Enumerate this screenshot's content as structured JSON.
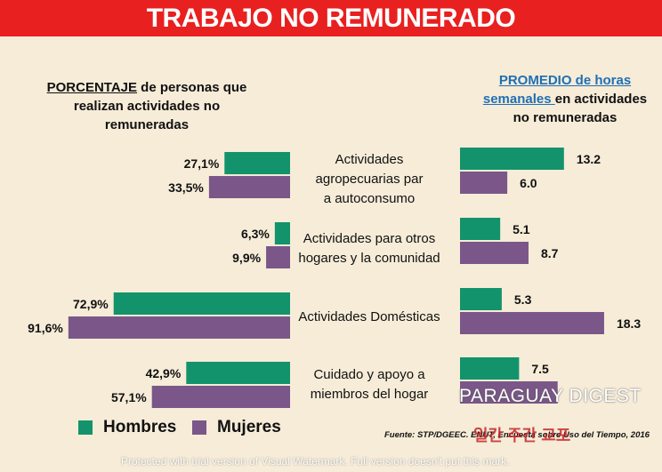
{
  "title": "TRABAJO NO REMUNERADO",
  "left_header": {
    "underlined": "PORCENTAJE",
    "rest": " de personas que realizan actividades no remuneradas"
  },
  "right_header": {
    "underlined": "PROMEDIO de horas semanales ",
    "rest": "en actividades no remuneradas"
  },
  "legend": [
    {
      "label": "Hombres",
      "color": "#13936b"
    },
    {
      "label": "Mujeres",
      "color": "#7a5788"
    }
  ],
  "source": "Fuente: STP/DGEEC. ENUT, Encuesta sobre Uso del Tiempo, 2016",
  "watermarks": [
    "PARAGUAY DIGEST",
    "일간 주간 교포",
    "Protected with trial version of Visual Watermark. Full version doesn't put this mark."
  ],
  "colors": {
    "hombres": "#13936b",
    "mujeres": "#7a5788",
    "banner": "#e8201f",
    "background": "#f6ecd8"
  },
  "chart_data": [
    {
      "type": "bar",
      "orientation": "horizontal",
      "direction": "right-to-left",
      "categories": [
        "Actividades agropecuarias para autoconsumo",
        "Actividades para otros hogares y la comunidad",
        "Actividades Domésticas",
        "Cuidado  y apoyo a miembros del hogar"
      ],
      "series": [
        {
          "name": "Hombres",
          "values": [
            27.1,
            6.3,
            72.9,
            42.9
          ],
          "labels": [
            "27,1%",
            "6,3%",
            "72,9%",
            "42,9%"
          ]
        },
        {
          "name": "Mujeres",
          "values": [
            33.5,
            9.9,
            91.6,
            57.1
          ],
          "labels": [
            "33,5%",
            "9,9%",
            "91,6%",
            "57,1%"
          ]
        }
      ],
      "xlim": [
        0,
        100
      ]
    },
    {
      "type": "bar",
      "orientation": "horizontal",
      "categories": [
        "Actividades agropecuarias para autoconsumo",
        "Actividades para otros hogares y la comunidad",
        "Actividades Domésticas",
        "Cuidado  y apoyo a miembros del hogar"
      ],
      "series": [
        {
          "name": "Hombres",
          "values": [
            13.2,
            5.1,
            5.3,
            7.5
          ],
          "labels": [
            "13.2",
            "5.1",
            "5.3",
            "7.5"
          ]
        },
        {
          "name": "Mujeres",
          "values": [
            6.0,
            8.7,
            18.3,
            12.4
          ],
          "labels": [
            "6.0",
            "8.7",
            "18.3",
            ""
          ]
        }
      ],
      "xlim": [
        0,
        20
      ]
    }
  ],
  "category_labels": [
    "Actividades agropecuarias para autoconsumo",
    "Actividades para otros hogares y la comunidad",
    "Actividades Domésticas",
    "Cuidado  y apoyo a miembros del hogar"
  ]
}
